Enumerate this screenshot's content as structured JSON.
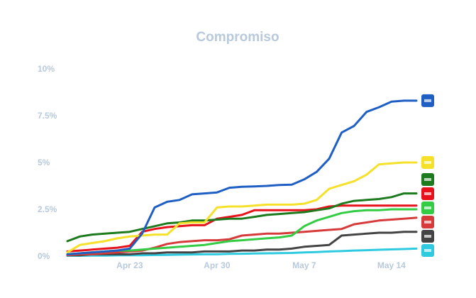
{
  "chart_data": {
    "type": "line",
    "title": "Compromiso",
    "xlabel": "",
    "ylabel": "",
    "ylim": [
      0,
      10
    ],
    "yticks": [
      "0%",
      "2.5%",
      "5%",
      "7.5%",
      "10%"
    ],
    "xticks": [
      "Apr 23",
      "Apr 30",
      "May 7",
      "May 14"
    ],
    "x": [
      "Apr 18",
      "Apr 19",
      "Apr 20",
      "Apr 21",
      "Apr 22",
      "Apr 23",
      "Apr 24",
      "Apr 25",
      "Apr 26",
      "Apr 27",
      "Apr 28",
      "Apr 29",
      "Apr 30",
      "May 1",
      "May 2",
      "May 3",
      "May 4",
      "May 5",
      "May 6",
      "May 7",
      "May 8",
      "May 9",
      "May 10",
      "May 11",
      "May 12",
      "May 13",
      "May 14",
      "May 15",
      "May 16"
    ],
    "grid": false,
    "legend": "none",
    "series": [
      {
        "color": "#1f5fc4",
        "icon": "blue-50-logo-icon",
        "values": [
          0.1,
          0.15,
          0.2,
          0.25,
          0.3,
          0.4,
          1.2,
          2.6,
          2.9,
          3.0,
          3.3,
          3.35,
          3.4,
          3.65,
          3.7,
          3.72,
          3.75,
          3.8,
          3.82,
          4.1,
          4.5,
          5.2,
          6.6,
          6.95,
          7.7,
          7.95,
          8.25,
          8.3,
          8.3
        ]
      },
      {
        "color": "#f5e12a",
        "icon": "colorful-star-logo-icon",
        "values": [
          0.2,
          0.6,
          0.7,
          0.8,
          0.95,
          1.05,
          1.1,
          1.15,
          1.15,
          1.75,
          1.8,
          1.8,
          2.6,
          2.65,
          2.65,
          2.7,
          2.75,
          2.75,
          2.75,
          2.8,
          3.0,
          3.6,
          3.8,
          4.0,
          4.35,
          4.9,
          4.95,
          5.0,
          5.0
        ]
      },
      {
        "color": "#1e7a1e",
        "icon": "green-brand-logo-icon",
        "values": [
          0.8,
          1.05,
          1.15,
          1.2,
          1.25,
          1.3,
          1.45,
          1.6,
          1.75,
          1.8,
          1.9,
          1.9,
          1.95,
          2.0,
          2.0,
          2.1,
          2.2,
          2.25,
          2.3,
          2.35,
          2.45,
          2.55,
          2.8,
          2.95,
          3.0,
          3.05,
          3.15,
          3.35,
          3.35
        ]
      },
      {
        "color": "#e8121c",
        "icon": "red-brand-logo-icon",
        "values": [
          0.25,
          0.3,
          0.35,
          0.4,
          0.45,
          0.55,
          1.3,
          1.45,
          1.55,
          1.6,
          1.65,
          1.65,
          2.0,
          2.1,
          2.2,
          2.45,
          2.45,
          2.45,
          2.45,
          2.45,
          2.5,
          2.65,
          2.7,
          2.7,
          2.7,
          2.7,
          2.7,
          2.7,
          2.7
        ]
      },
      {
        "color": "#33cc44",
        "icon": "pizzeria-logo-icon",
        "values": [
          0.1,
          0.15,
          0.2,
          0.25,
          0.3,
          0.3,
          0.35,
          0.4,
          0.45,
          0.5,
          0.55,
          0.6,
          0.7,
          0.8,
          0.85,
          0.9,
          0.95,
          1.0,
          1.1,
          1.6,
          1.9,
          2.1,
          2.3,
          2.4,
          2.45,
          2.45,
          2.5,
          2.5,
          2.5
        ]
      },
      {
        "color": "#d63a3a",
        "icon": "striped-logo-icon",
        "values": [
          0.05,
          0.1,
          0.1,
          0.15,
          0.2,
          0.25,
          0.3,
          0.45,
          0.65,
          0.75,
          0.8,
          0.85,
          0.85,
          0.9,
          1.1,
          1.15,
          1.2,
          1.2,
          1.25,
          1.3,
          1.35,
          1.4,
          1.45,
          1.7,
          1.8,
          1.9,
          1.95,
          2.0,
          2.05
        ]
      },
      {
        "color": "#444444",
        "icon": "dark-logo-icon",
        "values": [
          0.05,
          0.05,
          0.1,
          0.1,
          0.1,
          0.1,
          0.15,
          0.15,
          0.2,
          0.2,
          0.2,
          0.25,
          0.25,
          0.25,
          0.3,
          0.3,
          0.35,
          0.35,
          0.4,
          0.5,
          0.55,
          0.6,
          1.1,
          1.15,
          1.2,
          1.25,
          1.25,
          1.3,
          1.3
        ]
      },
      {
        "color": "#2ecbe0",
        "icon": "blue-shield-logo-icon",
        "values": [
          0.02,
          0.02,
          0.03,
          0.03,
          0.04,
          0.05,
          0.05,
          0.06,
          0.07,
          0.08,
          0.09,
          0.1,
          0.1,
          0.12,
          0.13,
          0.14,
          0.15,
          0.16,
          0.17,
          0.2,
          0.22,
          0.25,
          0.27,
          0.3,
          0.32,
          0.34,
          0.36,
          0.38,
          0.4
        ]
      }
    ]
  }
}
